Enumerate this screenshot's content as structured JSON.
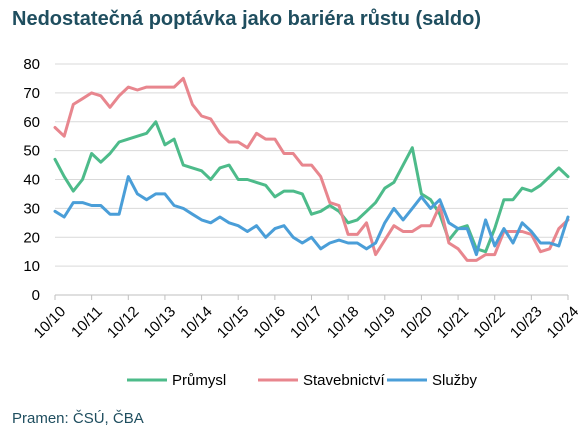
{
  "chart_data": {
    "type": "line",
    "title": "Nedostatečná poptávka jako bariéra růstu (saldo)",
    "xlabel": "",
    "ylabel": "",
    "ylim": [
      0,
      80
    ],
    "yticks": [
      0,
      10,
      20,
      30,
      40,
      50,
      60,
      70,
      80
    ],
    "x_tick_labels": [
      "10/10",
      "10/11",
      "10/12",
      "10/13",
      "10/14",
      "10/15",
      "10/16",
      "10/17",
      "10/18",
      "10/19",
      "10/20",
      "10/21",
      "10/22",
      "10/23",
      "10/24"
    ],
    "grid": "horizontal",
    "legend_position": "bottom",
    "x_note": "quarterly observations, x value = years since 10/10",
    "series": [
      {
        "name": "Průmysl",
        "color": "#4dbb8a",
        "values": [
          [
            0,
            47
          ],
          [
            0.25,
            41
          ],
          [
            0.5,
            36
          ],
          [
            0.75,
            40
          ],
          [
            1,
            49
          ],
          [
            1.25,
            46
          ],
          [
            1.5,
            49
          ],
          [
            1.75,
            53
          ],
          [
            2,
            54
          ],
          [
            2.25,
            55
          ],
          [
            2.5,
            56
          ],
          [
            2.75,
            60
          ],
          [
            3,
            52
          ],
          [
            3.25,
            54
          ],
          [
            3.5,
            45
          ],
          [
            3.75,
            44
          ],
          [
            4,
            43
          ],
          [
            4.25,
            40
          ],
          [
            4.5,
            44
          ],
          [
            4.75,
            45
          ],
          [
            5,
            40
          ],
          [
            5.25,
            40
          ],
          [
            5.5,
            39
          ],
          [
            5.75,
            38
          ],
          [
            6,
            34
          ],
          [
            6.25,
            36
          ],
          [
            6.5,
            36
          ],
          [
            6.75,
            35
          ],
          [
            7,
            28
          ],
          [
            7.25,
            29
          ],
          [
            7.5,
            31
          ],
          [
            7.75,
            29
          ],
          [
            8,
            25
          ],
          [
            8.25,
            26
          ],
          [
            8.5,
            29
          ],
          [
            8.75,
            32
          ],
          [
            9,
            37
          ],
          [
            9.25,
            39
          ],
          [
            9.5,
            45
          ],
          [
            9.75,
            51
          ],
          [
            10,
            35
          ],
          [
            10.25,
            33
          ],
          [
            10.5,
            28
          ],
          [
            10.75,
            19
          ],
          [
            11,
            23
          ],
          [
            11.25,
            24
          ],
          [
            11.5,
            16
          ],
          [
            11.75,
            15
          ],
          [
            12,
            23
          ],
          [
            12.25,
            33
          ],
          [
            12.5,
            33
          ],
          [
            12.75,
            37
          ],
          [
            13,
            36
          ],
          [
            13.25,
            38
          ],
          [
            13.5,
            41
          ],
          [
            13.75,
            44
          ],
          [
            14,
            41
          ]
        ]
      },
      {
        "name": "Stavebnictví",
        "color": "#e8868e",
        "values": [
          [
            0,
            58
          ],
          [
            0.25,
            55
          ],
          [
            0.5,
            66
          ],
          [
            0.75,
            68
          ],
          [
            1,
            70
          ],
          [
            1.25,
            69
          ],
          [
            1.5,
            65
          ],
          [
            1.75,
            69
          ],
          [
            2,
            72
          ],
          [
            2.25,
            71
          ],
          [
            2.5,
            72
          ],
          [
            2.75,
            72
          ],
          [
            3,
            72
          ],
          [
            3.25,
            72
          ],
          [
            3.5,
            75
          ],
          [
            3.75,
            66
          ],
          [
            4,
            62
          ],
          [
            4.25,
            61
          ],
          [
            4.5,
            56
          ],
          [
            4.75,
            53
          ],
          [
            5,
            53
          ],
          [
            5.25,
            51
          ],
          [
            5.5,
            56
          ],
          [
            5.75,
            54
          ],
          [
            6,
            54
          ],
          [
            6.25,
            49
          ],
          [
            6.5,
            49
          ],
          [
            6.75,
            45
          ],
          [
            7,
            45
          ],
          [
            7.25,
            41
          ],
          [
            7.5,
            32
          ],
          [
            7.75,
            31
          ],
          [
            8,
            21
          ],
          [
            8.25,
            21
          ],
          [
            8.5,
            25
          ],
          [
            8.75,
            14
          ],
          [
            9,
            19
          ],
          [
            9.25,
            24
          ],
          [
            9.5,
            22
          ],
          [
            9.75,
            22
          ],
          [
            10,
            24
          ],
          [
            10.25,
            24
          ],
          [
            10.5,
            31
          ],
          [
            10.75,
            18
          ],
          [
            11,
            16
          ],
          [
            11.25,
            12
          ],
          [
            11.5,
            12
          ],
          [
            11.75,
            14
          ],
          [
            12,
            14
          ],
          [
            12.25,
            22
          ],
          [
            12.5,
            22
          ],
          [
            12.75,
            22
          ],
          [
            13,
            21
          ],
          [
            13.25,
            15
          ],
          [
            13.5,
            16
          ],
          [
            13.75,
            23
          ],
          [
            14,
            26
          ]
        ]
      },
      {
        "name": "Služby",
        "color": "#4a9ed8",
        "values": [
          [
            0,
            29
          ],
          [
            0.25,
            27
          ],
          [
            0.5,
            32
          ],
          [
            0.75,
            32
          ],
          [
            1,
            31
          ],
          [
            1.25,
            31
          ],
          [
            1.5,
            28
          ],
          [
            1.75,
            28
          ],
          [
            2,
            41
          ],
          [
            2.25,
            35
          ],
          [
            2.5,
            33
          ],
          [
            2.75,
            35
          ],
          [
            3,
            35
          ],
          [
            3.25,
            31
          ],
          [
            3.5,
            30
          ],
          [
            3.75,
            28
          ],
          [
            4,
            26
          ],
          [
            4.25,
            25
          ],
          [
            4.5,
            27
          ],
          [
            4.75,
            25
          ],
          [
            5,
            24
          ],
          [
            5.25,
            22
          ],
          [
            5.5,
            24
          ],
          [
            5.75,
            20
          ],
          [
            6,
            23
          ],
          [
            6.25,
            24
          ],
          [
            6.5,
            20
          ],
          [
            6.75,
            18
          ],
          [
            7,
            20
          ],
          [
            7.25,
            16
          ],
          [
            7.5,
            18
          ],
          [
            7.75,
            19
          ],
          [
            8,
            18
          ],
          [
            8.25,
            18
          ],
          [
            8.5,
            16
          ],
          [
            8.75,
            18
          ],
          [
            9,
            25
          ],
          [
            9.25,
            30
          ],
          [
            9.5,
            26
          ],
          [
            9.75,
            30
          ],
          [
            10,
            34
          ],
          [
            10.25,
            30
          ],
          [
            10.5,
            33
          ],
          [
            10.75,
            25
          ],
          [
            11,
            23
          ],
          [
            11.25,
            23
          ],
          [
            11.5,
            14
          ],
          [
            11.75,
            26
          ],
          [
            12,
            17
          ],
          [
            12.25,
            23
          ],
          [
            12.5,
            18
          ],
          [
            12.75,
            25
          ],
          [
            13,
            22
          ],
          [
            13.25,
            18
          ],
          [
            13.5,
            18
          ],
          [
            13.75,
            17
          ],
          [
            14,
            27
          ]
        ]
      }
    ]
  },
  "source": "Pramen: ČSÚ, ČBA"
}
